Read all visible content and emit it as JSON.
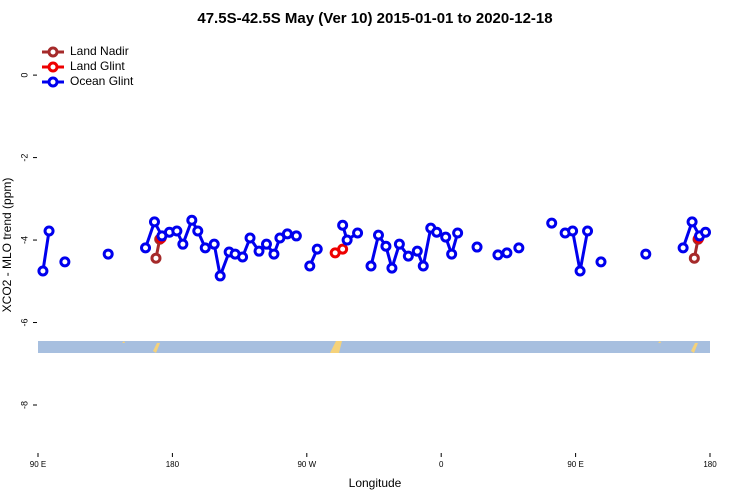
{
  "chart_data": {
    "type": "line",
    "title": "47.5S-42.5S May (Ver 10)   2015-01-01 to 2020-12-18",
    "xlabel": "Longitude",
    "ylabel": "XCO2 - MLO trend (ppm)",
    "xlim": [
      90,
      540
    ],
    "ylim": [
      -9.14,
      0.9
    ],
    "xticks": [
      {
        "value": 90,
        "label": "90 E"
      },
      180,
      {
        "value": 270,
        "label": "90 W"
      },
      {
        "value": 360,
        "label": "0"
      },
      {
        "value": 450,
        "label": "90 E"
      },
      {
        "value": 540,
        "label": "180"
      }
    ],
    "yticks": [
      0,
      -2,
      -4,
      -6,
      -8
    ],
    "legend": "top-left",
    "series": [
      {
        "name": "Land Nadir",
        "color": "#a52a2a",
        "x": [
          169,
          171.5,
          null,
          529.5,
          532
        ],
        "values": [
          -4.44,
          -3.98,
          null,
          -4.44,
          -3.98
        ]
      },
      {
        "name": "Land Glint",
        "color": "#ee0000",
        "x": [
          172.5,
          null,
          289,
          294,
          null,
          532.5
        ],
        "values": [
          -3.95,
          null,
          -4.31,
          -4.22,
          null,
          -3.95
        ]
      },
      {
        "name": "Ocean Glint",
        "color": "#0000ee",
        "x": [
          93.3,
          97.4,
          null,
          108,
          null,
          137,
          null,
          162,
          168,
          173,
          178,
          183,
          187,
          193,
          197,
          202,
          208,
          212,
          218,
          222,
          227,
          232,
          238,
          243,
          248,
          252,
          257,
          263,
          null,
          272,
          277,
          null,
          294,
          297,
          304,
          null,
          313,
          318,
          323,
          327,
          332,
          338,
          344,
          348,
          353,
          357,
          363,
          367,
          371,
          null,
          384,
          null,
          398,
          404,
          null,
          412,
          null,
          434,
          null,
          443,
          448,
          453,
          458,
          null,
          467,
          null,
          497,
          null,
          522,
          528,
          533,
          537
        ],
        "values": [
          -4.75,
          -3.78,
          null,
          -4.53,
          null,
          -4.34,
          null,
          -4.19,
          -3.56,
          -3.9,
          -3.81,
          -3.78,
          -4.1,
          -3.52,
          -3.78,
          -4.19,
          -4.1,
          -4.87,
          -4.29,
          -4.34,
          -4.41,
          -3.95,
          -4.27,
          -4.1,
          -4.34,
          -3.95,
          -3.85,
          -3.9,
          null,
          -4.63,
          -4.22,
          null,
          -3.64,
          -4.0,
          -3.83,
          null,
          -4.63,
          -3.88,
          -4.15,
          -4.68,
          -4.1,
          -4.39,
          -4.27,
          -4.63,
          -3.71,
          -3.81,
          -3.93,
          -4.34,
          -3.83,
          null,
          -4.17,
          null,
          -4.36,
          -4.31,
          null,
          -4.19,
          null,
          -3.59,
          null,
          -3.83,
          -3.78,
          -4.75,
          -3.78,
          null,
          -4.53,
          null,
          -4.34,
          null,
          -4.19,
          -3.56,
          -3.9,
          -3.81
        ]
      }
    ]
  }
}
